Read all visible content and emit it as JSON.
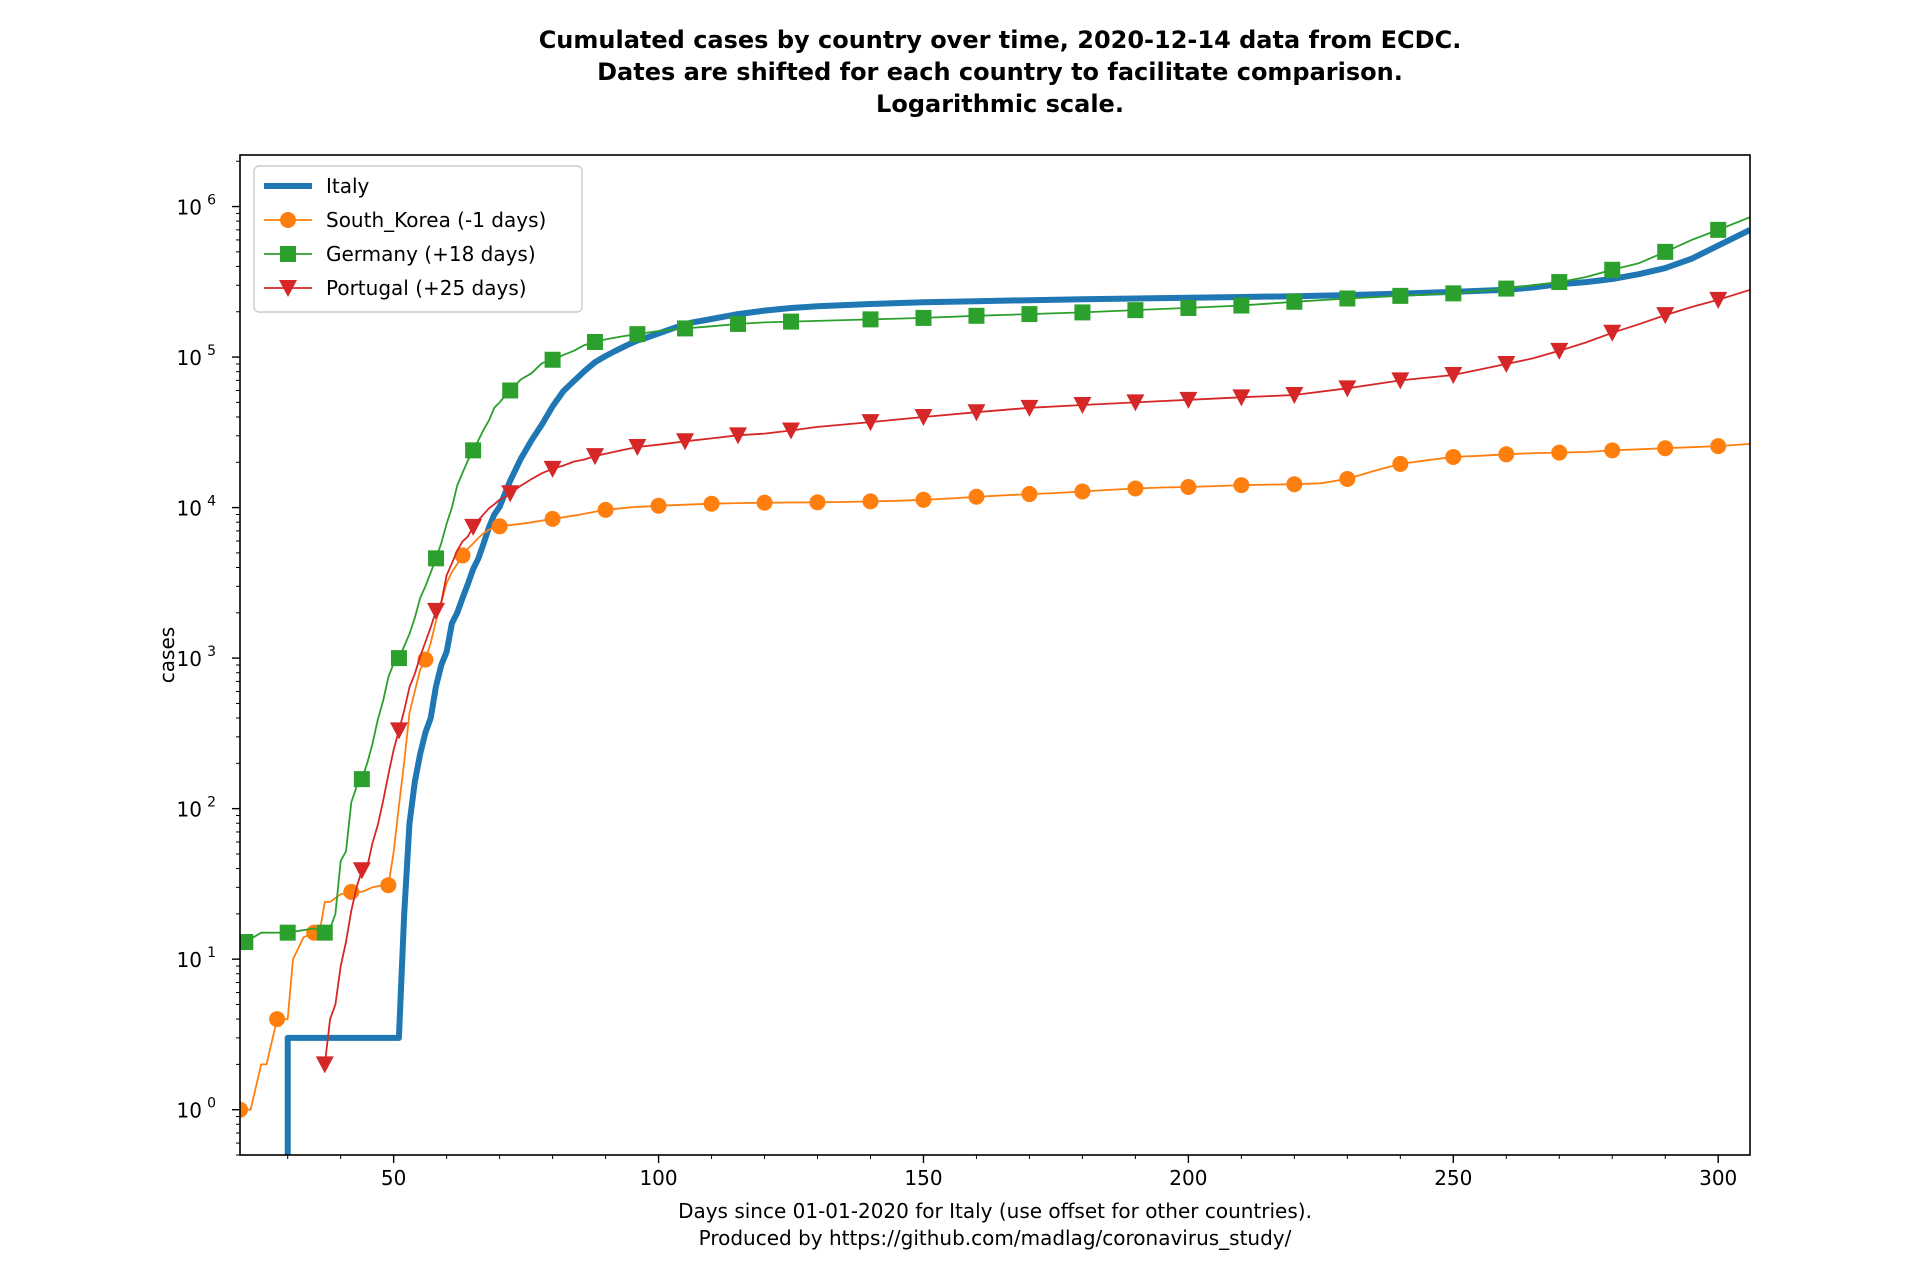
{
  "chart_data": {
    "type": "line",
    "title_lines": [
      "Cumulated cases by country over time, 2020-12-14 data from ECDC.",
      "Dates are shifted for each country to facilitate comparison.",
      "Logarithmic scale."
    ],
    "xlabel_lines": [
      "Days since 01-01-2020 for Italy (use offset for other countries).",
      "Produced by https://github.com/madlag/coronavirus_study/"
    ],
    "ylabel": "cases",
    "x_scale": "linear",
    "y_scale": "log",
    "xlim": [
      21,
      306
    ],
    "ylim": [
      0.5,
      2200000
    ],
    "xticks": [
      50,
      100,
      150,
      200,
      250,
      300
    ],
    "yticks": [
      {
        "value": 1,
        "base": "10",
        "exp": "0"
      },
      {
        "value": 10,
        "base": "10",
        "exp": "1"
      },
      {
        "value": 100,
        "base": "10",
        "exp": "2"
      },
      {
        "value": 1000,
        "base": "10",
        "exp": "3"
      },
      {
        "value": 10000,
        "base": "10",
        "exp": "4"
      },
      {
        "value": 100000,
        "base": "10",
        "exp": "5"
      },
      {
        "value": 1000000,
        "base": "10",
        "exp": "6"
      }
    ],
    "grid": false,
    "legend": "top-left",
    "series": [
      {
        "name": "Italy",
        "color": "#1f77b4",
        "marker": "none",
        "line_width": 6,
        "step_points": [
          [
            30,
            0.3
          ],
          [
            30,
            3
          ],
          [
            51,
            3
          ]
        ],
        "x": [
          51,
          52,
          53,
          54,
          55,
          56,
          57,
          58,
          59,
          60,
          61,
          62,
          63,
          64,
          65,
          66,
          67,
          68,
          69,
          70,
          72,
          74,
          76,
          78,
          80,
          82,
          84,
          86,
          88,
          90,
          92,
          94,
          96,
          98,
          100,
          103,
          106,
          110,
          115,
          120,
          125,
          130,
          140,
          150,
          160,
          170,
          180,
          190,
          200,
          210,
          220,
          230,
          240,
          250,
          260,
          265,
          270,
          275,
          280,
          285,
          290,
          295,
          300,
          306
        ],
        "y": [
          3,
          20,
          80,
          150,
          230,
          320,
          400,
          650,
          900,
          1100,
          1700,
          2000,
          2500,
          3100,
          3900,
          4600,
          5800,
          7400,
          9000,
          10100,
          15100,
          21100,
          27900,
          35700,
          47000,
          59100,
          69200,
          80500,
          92500,
          101700,
          110600,
          119800,
          128900,
          135600,
          143600,
          156400,
          168900,
          178900,
          193000,
          203500,
          211900,
          217600,
          225300,
          231200,
          235100,
          238800,
          241800,
          244900,
          248000,
          250800,
          253900,
          258100,
          264000,
          271000,
          280000,
          290000,
          305000,
          315000,
          330000,
          355000,
          390000,
          450000,
          550000,
          700000
        ]
      },
      {
        "name": "South_Korea (-1 days)",
        "color": "#ff7f0e",
        "marker": "circle",
        "line_width": 1.8,
        "x": [
          21,
          23,
          25,
          26,
          28,
          30,
          31,
          33,
          35,
          36,
          37,
          38,
          40,
          42,
          44,
          46,
          48,
          49,
          50,
          51,
          52,
          53,
          54,
          55,
          56,
          57,
          58,
          59,
          60,
          61,
          62,
          63,
          64,
          65,
          66,
          67,
          68,
          69,
          70,
          75,
          80,
          85,
          90,
          95,
          100,
          105,
          110,
          115,
          120,
          125,
          130,
          135,
          140,
          145,
          150,
          155,
          160,
          165,
          170,
          175,
          180,
          185,
          190,
          195,
          200,
          205,
          210,
          215,
          220,
          225,
          230,
          235,
          240,
          245,
          250,
          255,
          260,
          265,
          270,
          275,
          280,
          285,
          290,
          295,
          300,
          306
        ],
        "y": [
          1,
          1,
          2,
          2,
          4,
          4,
          10,
          14,
          15,
          15,
          24,
          24,
          27,
          28,
          28,
          30,
          31,
          31,
          51,
          104,
          204,
          433,
          602,
          833,
          977,
          1261,
          1766,
          2337,
          3150,
          3736,
          4212,
          4812,
          5328,
          5766,
          6284,
          6767,
          7134,
          7382,
          7513,
          7870,
          8413,
          8961,
          9661,
          10062,
          10284,
          10450,
          10613,
          10708,
          10780,
          10810,
          10840,
          10900,
          11000,
          11100,
          11265,
          11500,
          11800,
          12050,
          12300,
          12500,
          12800,
          13100,
          13400,
          13600,
          13700,
          13900,
          14100,
          14200,
          14300,
          14500,
          15500,
          17500,
          19500,
          20600,
          21700,
          22100,
          22600,
          23000,
          23200,
          23400,
          24000,
          24400,
          24800,
          25200,
          25600,
          26500
        ]
      },
      {
        "name": "Germany (+18 days)",
        "color": "#2ca02c",
        "marker": "square",
        "line_width": 1.8,
        "x": [
          22,
          25,
          30,
          35,
          37,
          38,
          39,
          40,
          41,
          42,
          43,
          44,
          45,
          46,
          47,
          48,
          49,
          50,
          51,
          52,
          53,
          54,
          55,
          56,
          57,
          58,
          59,
          60,
          61,
          62,
          63,
          64,
          65,
          66,
          67,
          68,
          69,
          70,
          71,
          72,
          74,
          76,
          78,
          80,
          82,
          84,
          86,
          88,
          90,
          93,
          96,
          100,
          105,
          110,
          115,
          120,
          125,
          130,
          140,
          150,
          160,
          170,
          180,
          190,
          200,
          210,
          220,
          230,
          240,
          250,
          260,
          265,
          270,
          275,
          280,
          285,
          290,
          295,
          300,
          306
        ],
        "y": [
          13,
          15,
          15,
          16,
          15,
          16,
          20,
          45,
          52,
          110,
          140,
          157,
          200,
          270,
          390,
          520,
          750,
          920,
          1000,
          1200,
          1450,
          1850,
          2500,
          3000,
          3700,
          4600,
          5800,
          7800,
          10000,
          14000,
          17000,
          20500,
          24000,
          28000,
          33000,
          38000,
          46000,
          50000,
          55000,
          60000,
          71000,
          78000,
          91000,
          96000,
          103000,
          110000,
          120000,
          126000,
          131000,
          137000,
          142000,
          149000,
          155000,
          160000,
          166000,
          170000,
          172000,
          174000,
          178000,
          182000,
          188000,
          193000,
          198000,
          205000,
          212000,
          220000,
          233000,
          245000,
          255000,
          265000,
          285000,
          300000,
          315000,
          340000,
          380000,
          420000,
          500000,
          600000,
          700000,
          850000
        ]
      },
      {
        "name": "Portugal (+25 days)",
        "color": "#d62728",
        "marker": "triangle-down",
        "line_width": 1.8,
        "x": [
          37,
          38,
          39,
          40,
          41,
          42,
          43,
          44,
          45,
          46,
          47,
          48,
          49,
          50,
          51,
          52,
          53,
          54,
          55,
          56,
          57,
          58,
          59,
          60,
          61,
          62,
          63,
          64,
          65,
          66,
          67,
          68,
          69,
          70,
          71,
          72,
          74,
          76,
          78,
          80,
          82,
          84,
          86,
          88,
          90,
          93,
          96,
          100,
          105,
          110,
          115,
          120,
          125,
          130,
          140,
          150,
          160,
          170,
          180,
          190,
          200,
          210,
          220,
          230,
          240,
          250,
          260,
          265,
          270,
          275,
          280,
          285,
          290,
          295,
          300,
          306
        ],
        "y": [
          2,
          4,
          5,
          9,
          13,
          21,
          30,
          39,
          41,
          59,
          78,
          112,
          169,
          245,
          331,
          448,
          642,
          785,
          1020,
          1280,
          1600,
          2060,
          2362,
          3544,
          4268,
          5170,
          5962,
          6408,
          7443,
          8251,
          9034,
          9886,
          10524,
          11278,
          11730,
          12442,
          13956,
          15472,
          16934,
          18091,
          19022,
          20206,
          20863,
          21982,
          22797,
          24027,
          25282,
          26182,
          27581,
          28810,
          30200,
          31007,
          32500,
          34351,
          37000,
          40000,
          43000,
          46000,
          48000,
          50000,
          52000,
          54000,
          56000,
          62000,
          70000,
          76000,
          90000,
          98000,
          110000,
          125000,
          145000,
          165000,
          190000,
          215000,
          240000,
          280000
        ]
      }
    ]
  }
}
